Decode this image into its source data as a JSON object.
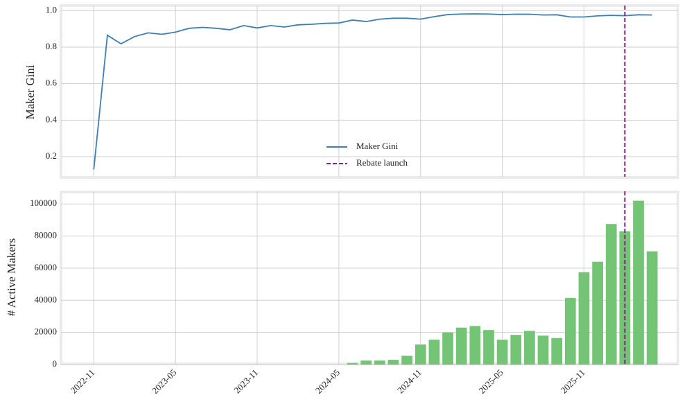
{
  "chart_data": [
    {
      "type": "line",
      "x": [
        "2022-11",
        "2022-12",
        "2023-01",
        "2023-02",
        "2023-03",
        "2023-04",
        "2023-05",
        "2023-06",
        "2023-07",
        "2023-08",
        "2023-09",
        "2023-10",
        "2023-11",
        "2023-12",
        "2024-01",
        "2024-02",
        "2024-03",
        "2024-04",
        "2024-05",
        "2024-06",
        "2024-07",
        "2024-08",
        "2024-09",
        "2024-10",
        "2024-11",
        "2024-12",
        "2025-01",
        "2025-02",
        "2025-03",
        "2025-04",
        "2025-05",
        "2025-06",
        "2025-07",
        "2025-08",
        "2025-09",
        "2025-10",
        "2025-11",
        "2025-12",
        "2026-01",
        "2026-02",
        "2026-03",
        "2026-04"
      ],
      "series": [
        {
          "name": "Maker Gini",
          "color": "#3a7fb5",
          "values": [
            0.13,
            0.865,
            0.818,
            0.858,
            0.878,
            0.87,
            0.882,
            0.903,
            0.908,
            0.903,
            0.895,
            0.918,
            0.905,
            0.918,
            0.91,
            0.922,
            0.925,
            0.93,
            0.932,
            0.948,
            0.94,
            0.953,
            0.958,
            0.958,
            0.953,
            0.967,
            0.978,
            0.981,
            0.982,
            0.981,
            0.978,
            0.98,
            0.98,
            0.976,
            0.977,
            0.965,
            0.965,
            0.971,
            0.974,
            0.972,
            0.977,
            0.976
          ]
        }
      ],
      "vline": {
        "name": "Rebate launch",
        "x": "2026-02",
        "color": "#8b1a8b"
      },
      "ylabel": "Maker Gini",
      "xlim": [
        "2022-09",
        "2026-06"
      ],
      "xgrid": [
        "2022-11",
        "2023-05",
        "2023-11",
        "2024-05",
        "2024-11",
        "2025-05",
        "2025-11"
      ],
      "ylim": [
        0.09,
        1.02
      ],
      "yticks": [
        0.2,
        0.4,
        0.6,
        0.8,
        {
          "value": 1,
          "label": "1.0"
        }
      ],
      "grid": true,
      "legend": "center"
    },
    {
      "type": "bar",
      "x": [
        "2022-11",
        "2022-12",
        "2023-01",
        "2023-02",
        "2023-03",
        "2023-04",
        "2023-05",
        "2023-06",
        "2023-07",
        "2023-08",
        "2023-09",
        "2023-10",
        "2023-11",
        "2023-12",
        "2024-01",
        "2024-02",
        "2024-03",
        "2024-04",
        "2024-05",
        "2024-06",
        "2024-07",
        "2024-08",
        "2024-09",
        "2024-10",
        "2024-11",
        "2024-12",
        "2025-01",
        "2025-02",
        "2025-03",
        "2025-04",
        "2025-05",
        "2025-06",
        "2025-07",
        "2025-08",
        "2025-09",
        "2025-10",
        "2025-11",
        "2025-12",
        "2026-01",
        "2026-02",
        "2026-03",
        "2026-04"
      ],
      "values": [
        0,
        0,
        0,
        0,
        0,
        0,
        0,
        0,
        0,
        0,
        0,
        0,
        0,
        0,
        0,
        0,
        0,
        0,
        0,
        1000,
        2500,
        2500,
        3000,
        5500,
        12500,
        15500,
        20000,
        23000,
        24000,
        21500,
        15500,
        18500,
        21000,
        18000,
        16500,
        41500,
        57500,
        64000,
        87500,
        83000,
        102000,
        70500
      ],
      "color": "#74c476",
      "vline": {
        "x": "2026-02",
        "color": "#8b1a8b"
      },
      "ylabel": "# Active Makers",
      "xlim": [
        "2022-09",
        "2026-06"
      ],
      "xticks": [
        "2022-11",
        "2023-05",
        "2023-11",
        "2024-05",
        "2024-11",
        "2025-05",
        "2025-11"
      ],
      "ylim": [
        0,
        107000
      ],
      "yticks": [
        0,
        20000,
        40000,
        60000,
        80000,
        100000
      ],
      "grid": true
    }
  ]
}
